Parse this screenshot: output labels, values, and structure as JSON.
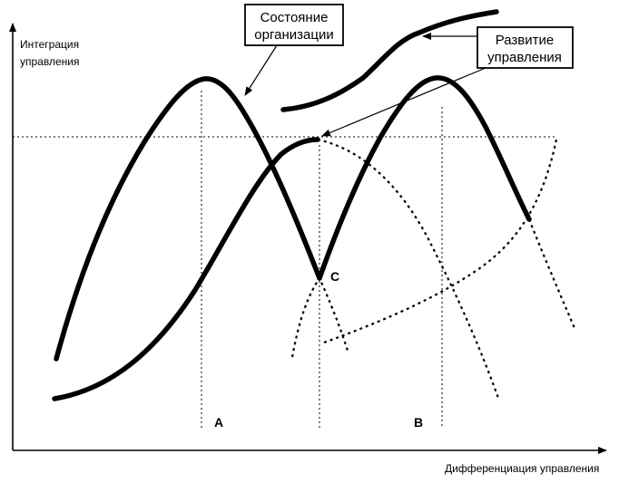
{
  "y_axis_label_line1": "Интеграция",
  "y_axis_label_line2": "управления",
  "x_axis_label": "Дифференциация управления",
  "callout_state_line1": "Состояние",
  "callout_state_line2": "организации",
  "callout_dev_line1": "Развитие",
  "callout_dev_line2": "управления",
  "point_a": "A",
  "point_b": "B",
  "point_c": "C"
}
